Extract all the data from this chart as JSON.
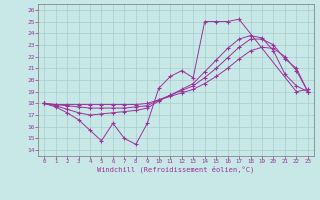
{
  "xlabel": "Windchill (Refroidissement éolien,°C)",
  "background_color": "#c8e8e8",
  "grid_color": "#a8cccc",
  "line_color": "#993399",
  "xlim": [
    -0.5,
    23.5
  ],
  "ylim": [
    13.5,
    26.5
  ],
  "xticks": [
    0,
    1,
    2,
    3,
    4,
    5,
    6,
    7,
    8,
    9,
    10,
    11,
    12,
    13,
    14,
    15,
    16,
    17,
    18,
    19,
    20,
    21,
    22,
    23
  ],
  "yticks": [
    14,
    15,
    16,
    17,
    18,
    19,
    20,
    21,
    22,
    23,
    24,
    25,
    26
  ],
  "line1_x": [
    0,
    1,
    2,
    3,
    4,
    5,
    6,
    7,
    8,
    9,
    10,
    11,
    12,
    13,
    14,
    15,
    16,
    17,
    22,
    23
  ],
  "line1_y": [
    18,
    17.7,
    17.2,
    16.6,
    15.7,
    14.8,
    16.3,
    15.0,
    14.5,
    16.3,
    19.3,
    20.3,
    20.8,
    20.2,
    25.0,
    25.0,
    25.0,
    25.2,
    19.0,
    19.2
  ],
  "line2_x": [
    0,
    1,
    2,
    3,
    4,
    5,
    6,
    7,
    8,
    9,
    10,
    11,
    12,
    13,
    14,
    15,
    16,
    17,
    18,
    19,
    20,
    21,
    22,
    23
  ],
  "line2_y": [
    18,
    17.8,
    17.5,
    17.2,
    17.0,
    17.1,
    17.2,
    17.3,
    17.4,
    17.6,
    18.2,
    18.7,
    19.2,
    19.7,
    20.7,
    21.7,
    22.7,
    23.5,
    23.8,
    23.6,
    22.5,
    20.5,
    19.5,
    19.0
  ],
  "line3_x": [
    0,
    1,
    2,
    3,
    4,
    5,
    6,
    7,
    8,
    9,
    10,
    11,
    12,
    13,
    14,
    15,
    16,
    17,
    18,
    19,
    20,
    21,
    22,
    23
  ],
  "line3_y": [
    18,
    17.9,
    17.8,
    17.7,
    17.6,
    17.6,
    17.6,
    17.6,
    17.7,
    17.8,
    18.3,
    18.7,
    19.1,
    19.5,
    20.2,
    21.0,
    21.9,
    22.8,
    23.5,
    23.5,
    23.0,
    21.8,
    21.0,
    19.0
  ],
  "line4_x": [
    0,
    1,
    2,
    3,
    4,
    5,
    6,
    7,
    8,
    9,
    10,
    11,
    12,
    13,
    14,
    15,
    16,
    17,
    18,
    19,
    20,
    21,
    22,
    23
  ],
  "line4_y": [
    18,
    17.9,
    17.9,
    17.9,
    17.9,
    17.9,
    17.9,
    17.9,
    17.9,
    18.0,
    18.3,
    18.6,
    18.9,
    19.2,
    19.7,
    20.3,
    21.0,
    21.8,
    22.5,
    22.8,
    22.7,
    22.0,
    20.8,
    19.0
  ]
}
